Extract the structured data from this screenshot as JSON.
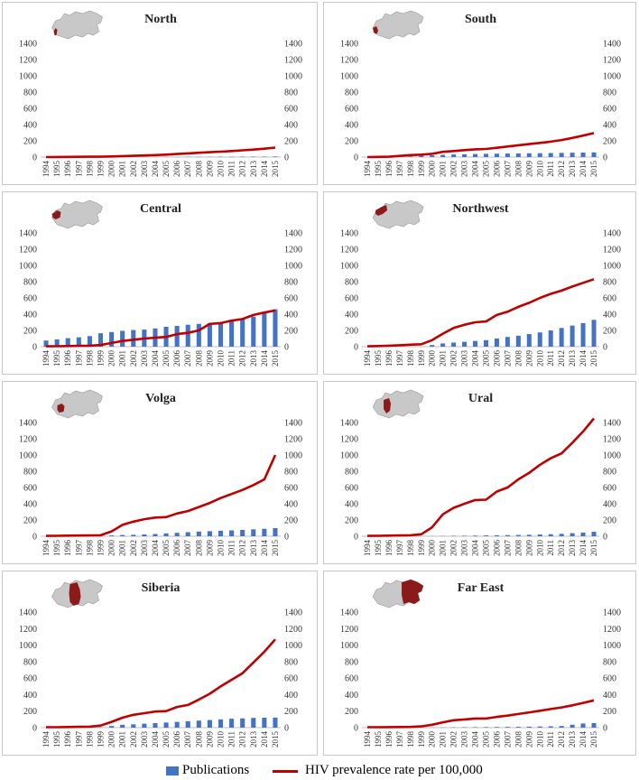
{
  "legend": {
    "publications_label": "Publications",
    "hiv_label": "HIV prevalence rate per 100,000"
  },
  "colors": {
    "bars": "#4472c4",
    "line": "#c00000",
    "map_base": "#c8c8c8",
    "map_highlight": "#8b1a1a"
  },
  "chart_data": [
    {
      "type": "bar",
      "title": "North",
      "region_highlight": "north",
      "years": [
        "1994",
        "1995",
        "1996",
        "1997",
        "1998",
        "1999",
        "2000",
        "2001",
        "2002",
        "2003",
        "2004",
        "2005",
        "2006",
        "2007",
        "2008",
        "2009",
        "2010",
        "2011",
        "2012",
        "2013",
        "2014",
        "2015"
      ],
      "yticks": [
        "0",
        "200",
        "400",
        "600",
        "800",
        "1000",
        "1200",
        "1400"
      ],
      "ylim": [
        0,
        1400
      ],
      "series": [
        {
          "name": "Publications",
          "kind": "bar",
          "values": [
            0,
            0,
            0,
            0,
            0,
            0,
            0,
            1,
            1,
            1,
            1,
            2,
            2,
            3,
            3,
            3,
            4,
            4,
            5,
            5,
            6,
            7
          ]
        },
        {
          "name": "HIV prevalence rate per 100,000",
          "kind": "line",
          "values": [
            0,
            1,
            2,
            3,
            4,
            5,
            8,
            12,
            16,
            20,
            25,
            30,
            38,
            46,
            53,
            60,
            67,
            75,
            83,
            92,
            103,
            117
          ]
        }
      ]
    },
    {
      "type": "bar",
      "title": "South",
      "region_highlight": "south",
      "years": [
        "1994",
        "1995",
        "1996",
        "1997",
        "1998",
        "1999",
        "2000",
        "2001",
        "2002",
        "2003",
        "2004",
        "2005",
        "2006",
        "2007",
        "2008",
        "2009",
        "2010",
        "2011",
        "2012",
        "2013",
        "2014",
        "2015"
      ],
      "yticks": [
        "0",
        "200",
        "400",
        "600",
        "800",
        "1000",
        "1200",
        "1400"
      ],
      "ylim": [
        0,
        1400
      ],
      "series": [
        {
          "name": "Publications",
          "kind": "bar",
          "values": [
            0,
            1,
            2,
            5,
            8,
            15,
            22,
            28,
            32,
            35,
            38,
            40,
            42,
            44,
            45,
            47,
            48,
            50,
            52,
            54,
            55,
            58
          ]
        },
        {
          "name": "HIV prevalence rate per 100,000",
          "kind": "line",
          "values": [
            0,
            2,
            5,
            15,
            25,
            30,
            40,
            65,
            75,
            85,
            95,
            100,
            115,
            130,
            145,
            160,
            175,
            190,
            210,
            235,
            265,
            295
          ]
        }
      ]
    },
    {
      "type": "bar",
      "title": "Central",
      "region_highlight": "central",
      "years": [
        "1994",
        "1995",
        "1996",
        "1997",
        "1998",
        "1999",
        "2000",
        "2001",
        "2002",
        "2003",
        "2004",
        "2005",
        "2006",
        "2007",
        "2008",
        "2009",
        "2010",
        "2011",
        "2012",
        "2013",
        "2014",
        "2015"
      ],
      "yticks": [
        "0",
        "200",
        "400",
        "600",
        "800",
        "1000",
        "1200",
        "1400"
      ],
      "ylim": [
        0,
        1400
      ],
      "series": [
        {
          "name": "Publications",
          "kind": "bar",
          "values": [
            75,
            90,
            105,
            115,
            130,
            165,
            180,
            195,
            205,
            210,
            225,
            245,
            255,
            270,
            280,
            290,
            300,
            330,
            340,
            370,
            420,
            460
          ]
        },
        {
          "name": "HIV prevalence rate per 100,000",
          "kind": "line",
          "values": [
            5,
            6,
            8,
            10,
            12,
            20,
            45,
            70,
            85,
            100,
            110,
            120,
            155,
            170,
            200,
            280,
            290,
            320,
            340,
            390,
            420,
            445
          ]
        }
      ]
    },
    {
      "type": "bar",
      "title": "Northwest",
      "region_highlight": "northwest",
      "years": [
        "1994",
        "1995",
        "1996",
        "1997",
        "1998",
        "1999",
        "2000",
        "2001",
        "2002",
        "2003",
        "2004",
        "2005",
        "2006",
        "2007",
        "2008",
        "2009",
        "2010",
        "2011",
        "2012",
        "2013",
        "2014",
        "2015"
      ],
      "yticks": [
        "0",
        "200",
        "400",
        "600",
        "800",
        "1000",
        "1200",
        "1400"
      ],
      "ylim": [
        0,
        1400
      ],
      "series": [
        {
          "name": "Publications",
          "kind": "bar",
          "values": [
            0,
            0,
            0,
            0,
            0,
            0,
            20,
            40,
            50,
            60,
            70,
            80,
            100,
            120,
            135,
            155,
            175,
            200,
            230,
            260,
            290,
            330
          ]
        },
        {
          "name": "HIV prevalence rate per 100,000",
          "kind": "line",
          "values": [
            5,
            8,
            12,
            18,
            25,
            30,
            80,
            160,
            230,
            270,
            300,
            310,
            390,
            430,
            490,
            540,
            600,
            650,
            690,
            740,
            785,
            830
          ]
        }
      ]
    },
    {
      "type": "bar",
      "title": "Volga",
      "region_highlight": "volga",
      "years": [
        "1994",
        "1995",
        "1996",
        "1997",
        "1998",
        "1999",
        "2000",
        "2001",
        "2002",
        "2003",
        "2004",
        "2005",
        "2006",
        "2007",
        "2008",
        "2009",
        "2010",
        "2011",
        "2012",
        "2013",
        "2014",
        "2015"
      ],
      "yticks": [
        "0",
        "200",
        "400",
        "600",
        "800",
        "1000",
        "1200",
        "1400"
      ],
      "ylim": [
        0,
        1400
      ],
      "series": [
        {
          "name": "Publications",
          "kind": "bar",
          "values": [
            0,
            0,
            0,
            0,
            0,
            0,
            10,
            15,
            18,
            22,
            28,
            35,
            42,
            50,
            58,
            62,
            68,
            72,
            78,
            85,
            92,
            100
          ]
        },
        {
          "name": "HIV prevalence rate per 100,000",
          "kind": "line",
          "values": [
            5,
            6,
            8,
            9,
            10,
            12,
            60,
            140,
            180,
            210,
            230,
            235,
            280,
            310,
            360,
            410,
            470,
            520,
            570,
            630,
            700,
            1000
          ]
        }
      ]
    },
    {
      "type": "bar",
      "title": "Ural",
      "region_highlight": "ural",
      "years": [
        "1994",
        "1995",
        "1996",
        "1997",
        "1998",
        "1999",
        "2000",
        "2001",
        "2002",
        "2003",
        "2004",
        "2005",
        "2006",
        "2007",
        "2008",
        "2009",
        "2010",
        "2011",
        "2012",
        "2013",
        "2014",
        "2015"
      ],
      "yticks": [
        "0",
        "200",
        "400",
        "600",
        "800",
        "1000",
        "1200",
        "1400"
      ],
      "ylim": [
        0,
        1400
      ],
      "series": [
        {
          "name": "Publications",
          "kind": "bar",
          "values": [
            0,
            0,
            0,
            0,
            0,
            0,
            2,
            3,
            5,
            6,
            8,
            10,
            12,
            14,
            16,
            18,
            22,
            25,
            30,
            38,
            45,
            55
          ]
        },
        {
          "name": "HIV prevalence rate per 100,000",
          "kind": "line",
          "values": [
            5,
            6,
            8,
            10,
            12,
            25,
            110,
            270,
            350,
            400,
            445,
            450,
            550,
            600,
            700,
            780,
            880,
            960,
            1020,
            1150,
            1290,
            1450
          ]
        }
      ]
    },
    {
      "type": "bar",
      "title": "Siberia",
      "region_highlight": "siberia",
      "years": [
        "1994",
        "1995",
        "1996",
        "1997",
        "1998",
        "1999",
        "2000",
        "2001",
        "2002",
        "2003",
        "2004",
        "2005",
        "2006",
        "2007",
        "2008",
        "2009",
        "2010",
        "2011",
        "2012",
        "2013",
        "2014",
        "2015"
      ],
      "yticks": [
        "0",
        "200",
        "400",
        "600",
        "800",
        "1000",
        "1200",
        "1400"
      ],
      "ylim": [
        0,
        1400
      ],
      "series": [
        {
          "name": "Publications",
          "kind": "bar",
          "values": [
            0,
            0,
            0,
            0,
            0,
            5,
            20,
            35,
            40,
            48,
            55,
            62,
            70,
            78,
            85,
            92,
            100,
            108,
            112,
            118,
            120,
            122
          ]
        },
        {
          "name": "HIV prevalence rate per 100,000",
          "kind": "line",
          "values": [
            5,
            6,
            8,
            10,
            12,
            25,
            70,
            120,
            155,
            175,
            195,
            200,
            250,
            275,
            340,
            410,
            500,
            580,
            660,
            790,
            920,
            1070
          ]
        }
      ]
    },
    {
      "type": "bar",
      "title": "Far East",
      "region_highlight": "fareast",
      "years": [
        "1994",
        "1995",
        "1996",
        "1997",
        "1998",
        "1999",
        "2000",
        "2001",
        "2002",
        "2003",
        "2004",
        "2005",
        "2006",
        "2007",
        "2008",
        "2009",
        "2010",
        "2011",
        "2012",
        "2013",
        "2014",
        "2015"
      ],
      "yticks": [
        "0",
        "200",
        "400",
        "600",
        "800",
        "1000",
        "1200",
        "1400"
      ],
      "ylim": [
        0,
        1400
      ],
      "series": [
        {
          "name": "Publications",
          "kind": "bar",
          "values": [
            0,
            0,
            0,
            0,
            0,
            0,
            2,
            3,
            4,
            5,
            6,
            7,
            8,
            9,
            10,
            12,
            14,
            16,
            20,
            35,
            50,
            55
          ]
        },
        {
          "name": "HIV prevalence rate per 100,000",
          "kind": "line",
          "values": [
            5,
            6,
            7,
            8,
            9,
            15,
            35,
            65,
            90,
            100,
            110,
            110,
            130,
            145,
            165,
            185,
            205,
            225,
            245,
            270,
            300,
            330
          ]
        }
      ]
    }
  ]
}
